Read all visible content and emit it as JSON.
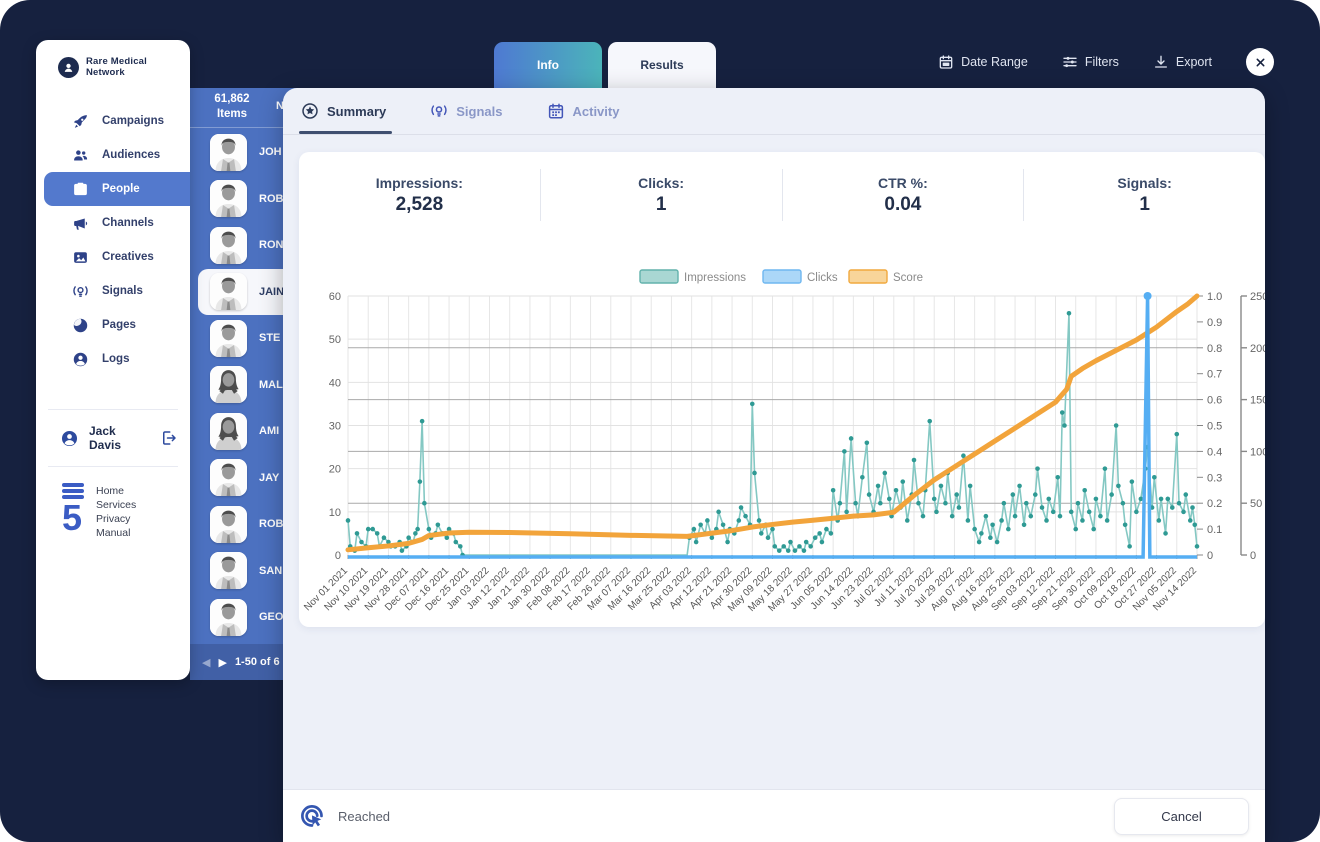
{
  "sidebar": {
    "brand": "Rare Medical Network",
    "items": [
      {
        "label": "Campaigns",
        "active": false
      },
      {
        "label": "Audiences",
        "active": false
      },
      {
        "label": "People",
        "active": true
      },
      {
        "label": "Channels",
        "active": false
      },
      {
        "label": "Creatives",
        "active": false
      },
      {
        "label": "Signals",
        "active": false
      },
      {
        "label": "Pages",
        "active": false
      },
      {
        "label": "Logs",
        "active": false
      }
    ],
    "user": {
      "name": "Jack Davis"
    },
    "footer_links": [
      {
        "label": "Home"
      },
      {
        "label": "Services"
      },
      {
        "label": "Privacy"
      },
      {
        "label": "Manual"
      }
    ]
  },
  "people_panel": {
    "count_value": "61,862",
    "count_unit": "Items",
    "name_column_header": "Name",
    "rows": [
      {
        "name": "JOH"
      },
      {
        "name": "ROB"
      },
      {
        "name": "RON"
      },
      {
        "name": "JAIN",
        "selected": true
      },
      {
        "name": "STE"
      },
      {
        "name": "MAL"
      },
      {
        "name": "AMI"
      },
      {
        "name": "JAY"
      },
      {
        "name": "ROB"
      },
      {
        "name": "SAN"
      },
      {
        "name": "GEO"
      }
    ],
    "pagination": {
      "range_text": "1-50 of 6",
      "prev": "◀",
      "next": "▶"
    }
  },
  "top_bar": {
    "tabs": [
      {
        "label": "Info",
        "active": false
      },
      {
        "label": "Results",
        "active": true
      }
    ],
    "actions": [
      {
        "label": "Date Range"
      },
      {
        "label": "Filters"
      },
      {
        "label": "Export"
      }
    ]
  },
  "modal": {
    "tabs": [
      {
        "label": "Summary",
        "active": true
      },
      {
        "label": "Signals",
        "active": false
      },
      {
        "label": "Activity",
        "active": false
      }
    ],
    "stats": [
      {
        "label": "Impressions:",
        "value": "2,528"
      },
      {
        "label": "Clicks:",
        "value": "1"
      },
      {
        "label": "CTR %:",
        "value": "0.04"
      },
      {
        "label": "Signals:",
        "value": "1"
      }
    ],
    "footer": {
      "reached_label": "Reached",
      "cancel_label": "Cancel"
    }
  },
  "chart_data": {
    "type": "line",
    "note": "Daily series Nov 01 2021 - Nov 14 2022; point values estimated from pixels; x = day offset from Nov 01 2021",
    "x_labels": [
      "Nov 01 2021",
      "Nov 10 2021",
      "Nov 19 2021",
      "Nov 28 2021",
      "Dec 07 2021",
      "Dec 16 2021",
      "Dec 25 2021",
      "Jan 03 2022",
      "Jan 12 2022",
      "Jan 21 2022",
      "Jan 30 2022",
      "Feb 08 2022",
      "Feb 17 2022",
      "Feb 26 2022",
      "Mar 07 2022",
      "Mar 16 2022",
      "Mar 25 2022",
      "Apr 03 2022",
      "Apr 12 2022",
      "Apr 21 2022",
      "Apr 30 2022",
      "May 09 2022",
      "May 18 2022",
      "May 27 2022",
      "Jun 05 2022",
      "Jun 14 2022",
      "Jun 23 2022",
      "Jul 02 2022",
      "Jul 11 2022",
      "Jul 20 2022",
      "Jul 29 2022",
      "Aug 07 2022",
      "Aug 16 2022",
      "Aug 25 2022",
      "Sep 03 2022",
      "Sep 12 2022",
      "Sep 21 2022",
      "Sep 30 2022",
      "Oct 09 2022",
      "Oct 18 2022",
      "Oct 27 2022",
      "Nov 05 2022",
      "Nov 14 2022"
    ],
    "x_tick_interval_days": 9,
    "axes": {
      "left": {
        "min": 0,
        "max": 60,
        "tick_step": 10
      },
      "right_inner": {
        "min": 0,
        "max": 1.0,
        "tick_step": 0.1
      },
      "right_outer": {
        "min": 0,
        "max": 250,
        "tick_step": 50
      }
    },
    "legend": {
      "position": "top",
      "entries": [
        "Impressions",
        "Clicks",
        "Score"
      ]
    },
    "series": [
      {
        "name": "Impressions",
        "axis": "left",
        "line_color": "#84c8c3",
        "dot_color": "#2f9a94",
        "legend_fill": "#a9d7d3",
        "legend_border": "#62b2ac",
        "points": [
          [
            0,
            8
          ],
          [
            1,
            2
          ],
          [
            3,
            1
          ],
          [
            4,
            5
          ],
          [
            6,
            3
          ],
          [
            8,
            2
          ],
          [
            9,
            6
          ],
          [
            11,
            6
          ],
          [
            13,
            5
          ],
          [
            14,
            2
          ],
          [
            16,
            4
          ],
          [
            18,
            3
          ],
          [
            19,
            2
          ],
          [
            21,
            2
          ],
          [
            23,
            3
          ],
          [
            24,
            1
          ],
          [
            26,
            2
          ],
          [
            27,
            4
          ],
          [
            29,
            3
          ],
          [
            30,
            5
          ],
          [
            31,
            6
          ],
          [
            32,
            17
          ],
          [
            33,
            31
          ],
          [
            34,
            12
          ],
          [
            36,
            6
          ],
          [
            37,
            4
          ],
          [
            39,
            5
          ],
          [
            40,
            7
          ],
          [
            42,
            5
          ],
          [
            44,
            4
          ],
          [
            45,
            6
          ],
          [
            47,
            5
          ],
          [
            48,
            3
          ],
          [
            50,
            2
          ],
          [
            51,
            0
          ],
          [
            80,
            0
          ],
          [
            110,
            0
          ],
          [
            140,
            0
          ],
          [
            151,
            0
          ],
          [
            152,
            4
          ],
          [
            154,
            6
          ],
          [
            155,
            3
          ],
          [
            157,
            7
          ],
          [
            159,
            5
          ],
          [
            160,
            8
          ],
          [
            162,
            4
          ],
          [
            164,
            6
          ],
          [
            165,
            10
          ],
          [
            167,
            7
          ],
          [
            169,
            3
          ],
          [
            170,
            6
          ],
          [
            172,
            5
          ],
          [
            174,
            8
          ],
          [
            175,
            11
          ],
          [
            177,
            9
          ],
          [
            179,
            7
          ],
          [
            180,
            35
          ],
          [
            181,
            19
          ],
          [
            183,
            8
          ],
          [
            184,
            5
          ],
          [
            186,
            7
          ],
          [
            187,
            4
          ],
          [
            189,
            6
          ],
          [
            190,
            2
          ],
          [
            192,
            1
          ],
          [
            194,
            2
          ],
          [
            196,
            1
          ],
          [
            197,
            3
          ],
          [
            199,
            1
          ],
          [
            201,
            2
          ],
          [
            203,
            1
          ],
          [
            204,
            3
          ],
          [
            206,
            2
          ],
          [
            208,
            4
          ],
          [
            210,
            5
          ],
          [
            211,
            3
          ],
          [
            213,
            6
          ],
          [
            215,
            5
          ],
          [
            216,
            15
          ],
          [
            218,
            8
          ],
          [
            219,
            12
          ],
          [
            221,
            24
          ],
          [
            222,
            10
          ],
          [
            224,
            27
          ],
          [
            226,
            12
          ],
          [
            227,
            9
          ],
          [
            229,
            18
          ],
          [
            231,
            26
          ],
          [
            232,
            14
          ],
          [
            234,
            10
          ],
          [
            236,
            16
          ],
          [
            237,
            12
          ],
          [
            239,
            19
          ],
          [
            241,
            13
          ],
          [
            242,
            9
          ],
          [
            244,
            15
          ],
          [
            246,
            11
          ],
          [
            247,
            17
          ],
          [
            249,
            8
          ],
          [
            251,
            14
          ],
          [
            252,
            22
          ],
          [
            254,
            12
          ],
          [
            256,
            9
          ],
          [
            257,
            15
          ],
          [
            259,
            31
          ],
          [
            261,
            13
          ],
          [
            262,
            10
          ],
          [
            264,
            16
          ],
          [
            266,
            12
          ],
          [
            267,
            19
          ],
          [
            269,
            9
          ],
          [
            271,
            14
          ],
          [
            272,
            11
          ],
          [
            274,
            23
          ],
          [
            276,
            8
          ],
          [
            277,
            16
          ],
          [
            279,
            6
          ],
          [
            281,
            3
          ],
          [
            282,
            5
          ],
          [
            284,
            9
          ],
          [
            286,
            4
          ],
          [
            287,
            7
          ],
          [
            289,
            3
          ],
          [
            291,
            8
          ],
          [
            292,
            12
          ],
          [
            294,
            6
          ],
          [
            296,
            14
          ],
          [
            297,
            9
          ],
          [
            299,
            16
          ],
          [
            301,
            7
          ],
          [
            302,
            12
          ],
          [
            304,
            9
          ],
          [
            306,
            14
          ],
          [
            307,
            20
          ],
          [
            309,
            11
          ],
          [
            311,
            8
          ],
          [
            312,
            13
          ],
          [
            314,
            10
          ],
          [
            316,
            18
          ],
          [
            317,
            9
          ],
          [
            318,
            33
          ],
          [
            319,
            30
          ],
          [
            321,
            56
          ],
          [
            322,
            10
          ],
          [
            324,
            6
          ],
          [
            325,
            12
          ],
          [
            327,
            8
          ],
          [
            328,
            15
          ],
          [
            330,
            10
          ],
          [
            332,
            6
          ],
          [
            333,
            13
          ],
          [
            335,
            9
          ],
          [
            337,
            20
          ],
          [
            338,
            8
          ],
          [
            340,
            14
          ],
          [
            342,
            30
          ],
          [
            343,
            16
          ],
          [
            345,
            12
          ],
          [
            346,
            7
          ],
          [
            348,
            2
          ],
          [
            349,
            17
          ],
          [
            351,
            10
          ],
          [
            353,
            13
          ],
          [
            355,
            20
          ],
          [
            356,
            25
          ],
          [
            358,
            11
          ],
          [
            359,
            18
          ],
          [
            361,
            8
          ],
          [
            362,
            13
          ],
          [
            364,
            5
          ],
          [
            365,
            13
          ],
          [
            367,
            11
          ],
          [
            369,
            28
          ],
          [
            370,
            12
          ],
          [
            372,
            10
          ],
          [
            373,
            14
          ],
          [
            375,
            8
          ],
          [
            376,
            11
          ],
          [
            377,
            7
          ],
          [
            378,
            2
          ]
        ]
      },
      {
        "name": "Clicks",
        "axis": "right_inner",
        "line_color": "#55aef3",
        "dot_color": "#55aef3",
        "legend_fill": "#abd7f8",
        "legend_border": "#6fb7f0",
        "points": [
          [
            0,
            0
          ],
          [
            354,
            0
          ],
          [
            356,
            1
          ],
          [
            357,
            0
          ],
          [
            378,
            0
          ]
        ]
      },
      {
        "name": "Score",
        "axis": "right_inner",
        "line_color": "#f2a43b",
        "width": 5,
        "legend_fill": "#f8d59a",
        "legend_border": "#f1a93e",
        "points": [
          [
            0,
            0.02
          ],
          [
            9,
            0.028
          ],
          [
            18,
            0.035
          ],
          [
            27,
            0.045
          ],
          [
            33,
            0.06
          ],
          [
            36,
            0.075
          ],
          [
            45,
            0.085
          ],
          [
            54,
            0.088
          ],
          [
            72,
            0.087
          ],
          [
            99,
            0.082
          ],
          [
            126,
            0.076
          ],
          [
            151,
            0.072
          ],
          [
            160,
            0.082
          ],
          [
            170,
            0.093
          ],
          [
            180,
            0.108
          ],
          [
            189,
            0.118
          ],
          [
            198,
            0.127
          ],
          [
            207,
            0.134
          ],
          [
            216,
            0.142
          ],
          [
            225,
            0.15
          ],
          [
            234,
            0.155
          ],
          [
            243,
            0.165
          ],
          [
            252,
            0.23
          ],
          [
            261,
            0.29
          ],
          [
            270,
            0.34
          ],
          [
            279,
            0.39
          ],
          [
            288,
            0.44
          ],
          [
            297,
            0.49
          ],
          [
            306,
            0.54
          ],
          [
            315,
            0.59
          ],
          [
            318,
            0.62
          ],
          [
            320,
            0.64
          ],
          [
            322,
            0.69
          ],
          [
            327,
            0.72
          ],
          [
            333,
            0.75
          ],
          [
            342,
            0.79
          ],
          [
            351,
            0.83
          ],
          [
            360,
            0.88
          ],
          [
            369,
            0.94
          ],
          [
            374,
            0.97
          ],
          [
            378,
            1.0
          ]
        ]
      }
    ]
  }
}
